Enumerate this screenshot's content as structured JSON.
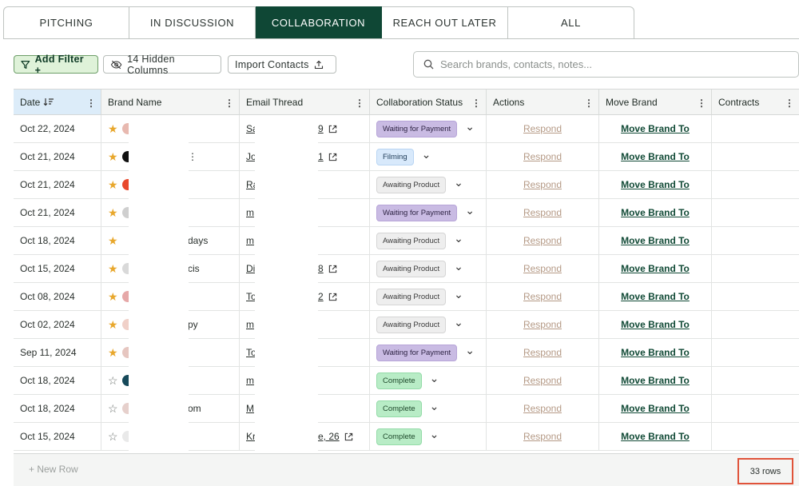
{
  "tabs": [
    {
      "label": "PITCHING",
      "active": false
    },
    {
      "label": "IN DISCUSSION",
      "active": false
    },
    {
      "label": "COLLABORATION",
      "active": true
    },
    {
      "label": "REACH OUT LATER",
      "active": false
    },
    {
      "label": "ALL",
      "active": false
    }
  ],
  "toolbar": {
    "add_filter": "Add Filter +",
    "hidden_columns": "14 Hidden Columns",
    "import_contacts": "Import Contacts",
    "search_placeholder": "Search brands, contacts, notes..."
  },
  "columns": [
    "Date",
    "Brand Name",
    "Email Thread",
    "Collaboration Status",
    "Actions",
    "Move Brand",
    "Contracts"
  ],
  "colors": {
    "tab_active": "#0f4735",
    "filter_bg": "#dff2d9",
    "sorted_header": "#dcecf9",
    "payment": "#c9bbe3",
    "filming": "#d8e9fb",
    "awaiting": "#eeeeee",
    "complete": "#b8ecc6",
    "highlight": "#e0533a"
  },
  "rows": [
    {
      "date": "Oct 22, 2024",
      "starred": true,
      "logo": "#e8b9b0",
      "brand_suffix": "",
      "email_prefix": "Sa",
      "email_suffix": "9",
      "external": true,
      "status": "Waiting for Payment",
      "status_kind": "payment",
      "action": "Respond",
      "move": "Move Brand To"
    },
    {
      "date": "Oct 21, 2024",
      "starred": true,
      "logo": "#111111",
      "brand_suffix": "⋮",
      "email_prefix": "Jo",
      "email_suffix": "1",
      "external": true,
      "status": "Filming",
      "status_kind": "filming",
      "action": "Respond",
      "move": "Move Brand To"
    },
    {
      "date": "Oct 21, 2024",
      "starred": true,
      "logo": "#e8492c",
      "brand_suffix": "",
      "email_prefix": "Ra",
      "email_suffix": "",
      "external": false,
      "status": "Awaiting Product",
      "status_kind": "awaiting",
      "action": "Respond",
      "move": "Move Brand To"
    },
    {
      "date": "Oct 21, 2024",
      "starred": true,
      "logo": "#cfcfcf",
      "brand_suffix": "",
      "email_prefix": "m",
      "email_suffix": "",
      "external": false,
      "status": "Waiting for Payment",
      "status_kind": "payment",
      "action": "Respond",
      "move": "Move Brand To"
    },
    {
      "date": "Oct 18, 2024",
      "starred": true,
      "logo": "#ffffff",
      "brand_suffix": "days",
      "email_prefix": "m",
      "email_suffix": "",
      "external": false,
      "status": "Awaiting Product",
      "status_kind": "awaiting",
      "action": "Respond",
      "move": "Move Brand To"
    },
    {
      "date": "Oct 15, 2024",
      "starred": true,
      "logo": "#d9d9d9",
      "brand_suffix": "cis",
      "email_prefix": "Di",
      "email_suffix": "8",
      "external": true,
      "status": "Awaiting Product",
      "status_kind": "awaiting",
      "action": "Respond",
      "move": "Move Brand To"
    },
    {
      "date": "Oct 08, 2024",
      "starred": true,
      "logo": "#e6a8a8",
      "brand_suffix": "",
      "email_prefix": "To",
      "email_suffix": "2",
      "external": true,
      "status": "Awaiting Product",
      "status_kind": "awaiting",
      "action": "Respond",
      "move": "Move Brand To"
    },
    {
      "date": "Oct 02, 2024",
      "starred": true,
      "logo": "#f0d0c8",
      "brand_suffix": "py",
      "email_prefix": "m",
      "email_suffix": "",
      "external": false,
      "status": "Awaiting Product",
      "status_kind": "awaiting",
      "action": "Respond",
      "move": "Move Brand To"
    },
    {
      "date": "Sep 11, 2024",
      "starred": true,
      "logo": "#e6c6c0",
      "brand_suffix": "",
      "email_prefix": "To",
      "email_suffix": "",
      "external": false,
      "status": "Waiting for Payment",
      "status_kind": "payment",
      "action": "Respond",
      "move": "Move Brand To"
    },
    {
      "date": "Oct 18, 2024",
      "starred": false,
      "logo": "#16495a",
      "brand_suffix": "",
      "email_prefix": "m",
      "email_suffix": "",
      "external": false,
      "status": "Complete",
      "status_kind": "complete",
      "action": "Respond",
      "move": "Move Brand To"
    },
    {
      "date": "Oct 18, 2024",
      "starred": false,
      "logo": "#e6d0cc",
      "brand_suffix": "om",
      "email_prefix": "M",
      "email_suffix": "",
      "external": false,
      "status": "Complete",
      "status_kind": "complete",
      "action": "Respond",
      "move": "Move Brand To"
    },
    {
      "date": "Oct 15, 2024",
      "starred": false,
      "logo": "#e9e9e9",
      "brand_suffix": "",
      "email_prefix": "Kr",
      "email_suffix": "e, 26",
      "external": true,
      "status": "Complete",
      "status_kind": "complete",
      "action": "Respond",
      "move": "Move Brand To"
    }
  ],
  "footer": {
    "new_row": "+ New Row",
    "row_count": "33 rows"
  }
}
